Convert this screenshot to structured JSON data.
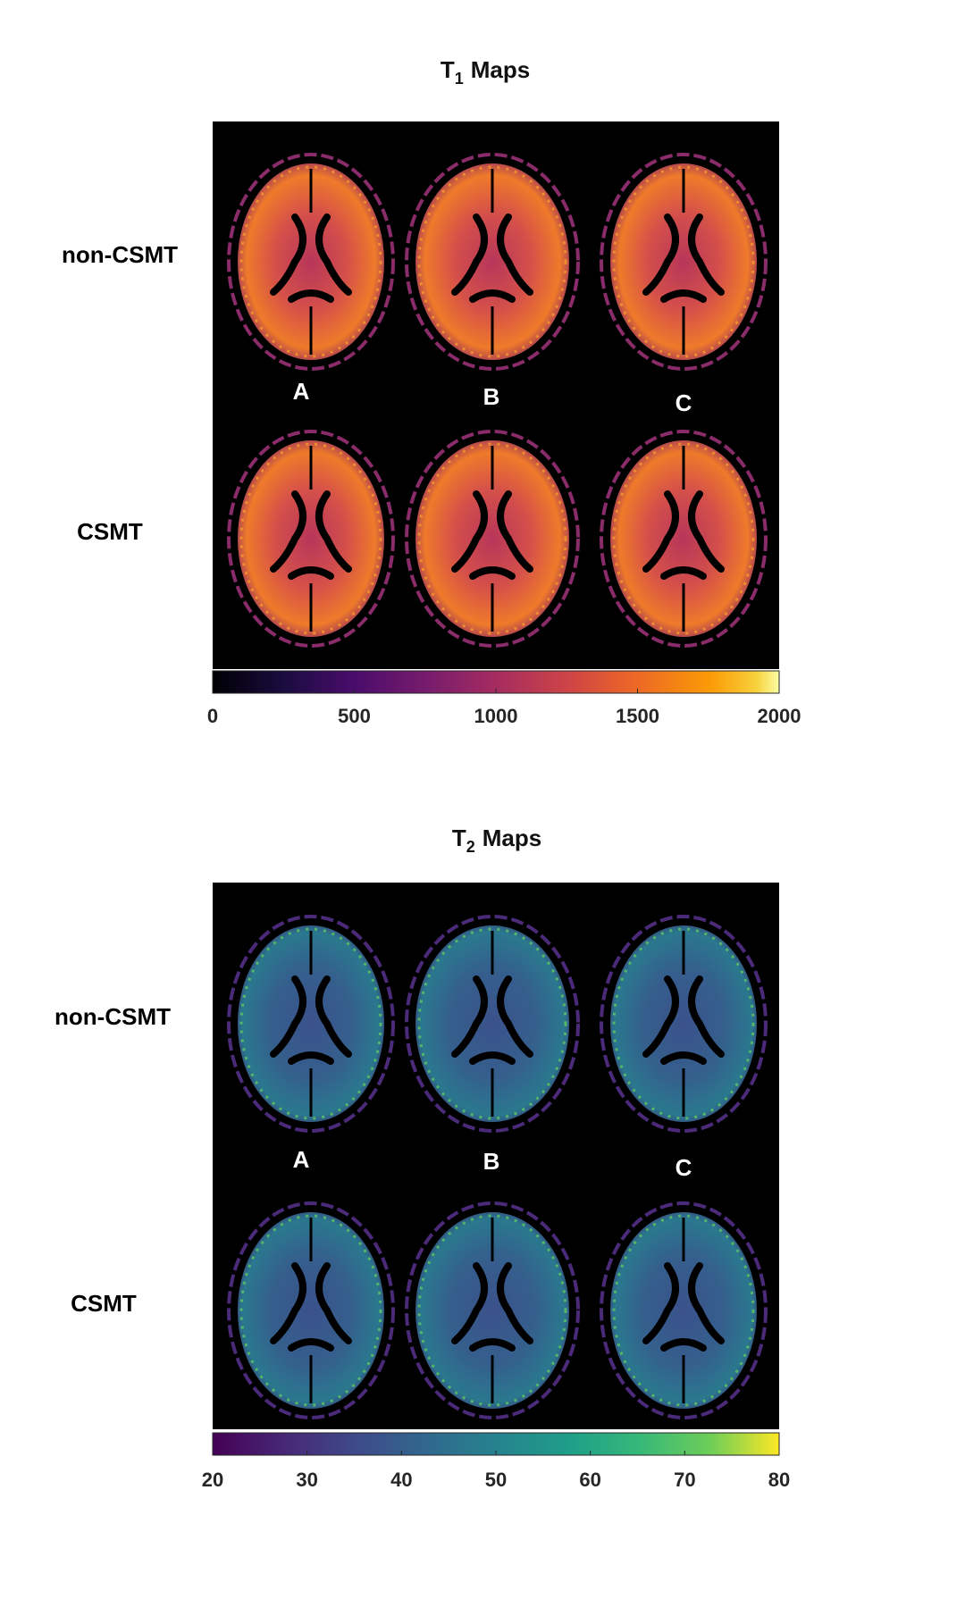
{
  "figures": [
    {
      "title": {
        "symbol": "T",
        "subscript": "1",
        "text": "Maps"
      },
      "row_labels": [
        "non-CSMT",
        "CSMT"
      ],
      "column_labels": [
        "A",
        "B",
        "C"
      ],
      "colorbar": {
        "colormap": "inferno",
        "limits": [
          0,
          2000
        ],
        "ticks": [
          0,
          500,
          1000,
          1500,
          2000
        ]
      }
    },
    {
      "title": {
        "symbol": "T",
        "subscript": "2",
        "text": "Maps"
      },
      "row_labels": [
        "non-CSMT",
        "CSMT"
      ],
      "column_labels": [
        "A",
        "B",
        "C"
      ],
      "colorbar": {
        "colormap": "viridis",
        "limits": [
          20,
          80
        ],
        "ticks": [
          20,
          30,
          40,
          50,
          60,
          70,
          80
        ]
      }
    }
  ]
}
